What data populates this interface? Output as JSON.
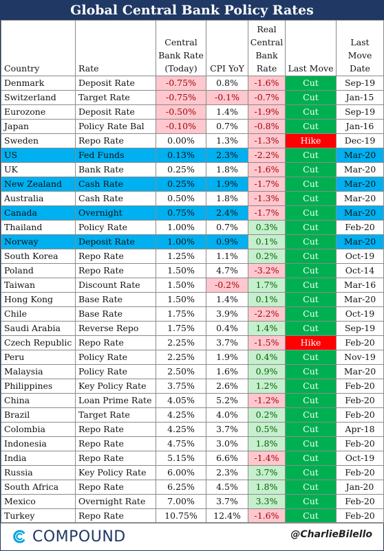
{
  "title": "Global Central Bank Policy Rates",
  "headers": {
    "country": "Country",
    "rate": "Rate",
    "cb_rate": [
      "Central",
      "Bank Rate",
      "(Today)"
    ],
    "cpi": "CPI YoY",
    "real": [
      "Real",
      "Central",
      "Bank",
      "Rate"
    ],
    "last_move": "Last Move",
    "date": [
      "Last",
      "Move",
      "Date"
    ]
  },
  "colors": {
    "title_bg": "#1f3864",
    "highlight_row": "#00b0f0",
    "negative_bg": "#ffc7ce",
    "negative_text": "#9c0006",
    "positive_bg": "#c6efce",
    "positive_text": "#006100",
    "cut": "#00b050",
    "hike": "#ff0000"
  },
  "rows": [
    {
      "country": "Denmark",
      "rate": "Deposit Rate",
      "cb": "-0.75%",
      "cpi": "0.8%",
      "real": "-1.6%",
      "move": "Cut",
      "date": "Sep-19",
      "hl": false,
      "cb_neg": true,
      "cpi_neg": false,
      "real_sign": "neg"
    },
    {
      "country": "Switzerland",
      "rate": "Target Rate",
      "cb": "-0.75%",
      "cpi": "-0.1%",
      "real": "-0.7%",
      "move": "Cut",
      "date": "Jan-15",
      "hl": false,
      "cb_neg": true,
      "cpi_neg": true,
      "real_sign": "neg"
    },
    {
      "country": "Eurozone",
      "rate": "Deposit Rate",
      "cb": "-0.50%",
      "cpi": "1.4%",
      "real": "-1.9%",
      "move": "Cut",
      "date": "Sep-19",
      "hl": false,
      "cb_neg": true,
      "cpi_neg": false,
      "real_sign": "neg"
    },
    {
      "country": "Japan",
      "rate": "Policy Rate Bal",
      "cb": "-0.10%",
      "cpi": "0.7%",
      "real": "-0.8%",
      "move": "Cut",
      "date": "Jan-16",
      "hl": false,
      "cb_neg": true,
      "cpi_neg": false,
      "real_sign": "neg"
    },
    {
      "country": "Sweden",
      "rate": "Repo Rate",
      "cb": "0.00%",
      "cpi": "1.3%",
      "real": "-1.3%",
      "move": "Hike",
      "date": "Dec-19",
      "hl": false,
      "cb_neg": false,
      "cpi_neg": false,
      "real_sign": "neg"
    },
    {
      "country": "US",
      "rate": "Fed Funds",
      "cb": "0.13%",
      "cpi": "2.3%",
      "real": "-2.2%",
      "move": "Cut",
      "date": "Mar-20",
      "hl": true,
      "cb_neg": false,
      "cpi_neg": false,
      "real_sign": "neg"
    },
    {
      "country": "UK",
      "rate": "Bank Rate",
      "cb": "0.25%",
      "cpi": "1.8%",
      "real": "-1.6%",
      "move": "Cut",
      "date": "Mar-20",
      "hl": false,
      "cb_neg": false,
      "cpi_neg": false,
      "real_sign": "neg"
    },
    {
      "country": "New Zealand",
      "rate": "Cash Rate",
      "cb": "0.25%",
      "cpi": "1.9%",
      "real": "-1.7%",
      "move": "Cut",
      "date": "Mar-20",
      "hl": true,
      "cb_neg": false,
      "cpi_neg": false,
      "real_sign": "neg"
    },
    {
      "country": "Australia",
      "rate": "Cash Rate",
      "cb": "0.50%",
      "cpi": "1.8%",
      "real": "-1.3%",
      "move": "Cut",
      "date": "Mar-20",
      "hl": false,
      "cb_neg": false,
      "cpi_neg": false,
      "real_sign": "neg"
    },
    {
      "country": "Canada",
      "rate": "Overnight",
      "cb": "0.75%",
      "cpi": "2.4%",
      "real": "-1.7%",
      "move": "Cut",
      "date": "Mar-20",
      "hl": true,
      "cb_neg": false,
      "cpi_neg": false,
      "real_sign": "neg"
    },
    {
      "country": "Thailand",
      "rate": "Policy Rate",
      "cb": "1.00%",
      "cpi": "0.7%",
      "real": "0.3%",
      "move": "Cut",
      "date": "Feb-20",
      "hl": false,
      "cb_neg": false,
      "cpi_neg": false,
      "real_sign": "pos"
    },
    {
      "country": "Norway",
      "rate": "Deposit Rate",
      "cb": "1.00%",
      "cpi": "0.9%",
      "real": "0.1%",
      "move": "Cut",
      "date": "Mar-20",
      "hl": true,
      "cb_neg": false,
      "cpi_neg": false,
      "real_sign": "pos"
    },
    {
      "country": "South Korea",
      "rate": "Repo Rate",
      "cb": "1.25%",
      "cpi": "1.1%",
      "real": "0.2%",
      "move": "Cut",
      "date": "Oct-19",
      "hl": false,
      "cb_neg": false,
      "cpi_neg": false,
      "real_sign": "pos"
    },
    {
      "country": "Poland",
      "rate": "Repo Rate",
      "cb": "1.50%",
      "cpi": "4.7%",
      "real": "-3.2%",
      "move": "Cut",
      "date": "Oct-14",
      "hl": false,
      "cb_neg": false,
      "cpi_neg": false,
      "real_sign": "neg"
    },
    {
      "country": "Taiwan",
      "rate": "Discount Rate",
      "cb": "1.50%",
      "cpi": "-0.2%",
      "real": "1.7%",
      "move": "Cut",
      "date": "Mar-16",
      "hl": false,
      "cb_neg": false,
      "cpi_neg": true,
      "real_sign": "pos"
    },
    {
      "country": "Hong Kong",
      "rate": "Base Rate",
      "cb": "1.50%",
      "cpi": "1.4%",
      "real": "0.1%",
      "move": "Cut",
      "date": "Mar-20",
      "hl": false,
      "cb_neg": false,
      "cpi_neg": false,
      "real_sign": "pos"
    },
    {
      "country": "Chile",
      "rate": "Base Rate",
      "cb": "1.75%",
      "cpi": "3.9%",
      "real": "-2.2%",
      "move": "Cut",
      "date": "Oct-19",
      "hl": false,
      "cb_neg": false,
      "cpi_neg": false,
      "real_sign": "neg"
    },
    {
      "country": "Saudi Arabia",
      "rate": "Reverse Repo",
      "cb": "1.75%",
      "cpi": "0.4%",
      "real": "1.4%",
      "move": "Cut",
      "date": "Sep-19",
      "hl": false,
      "cb_neg": false,
      "cpi_neg": false,
      "real_sign": "pos"
    },
    {
      "country": "Czech Republic",
      "rate": "Repo Rate",
      "cb": "2.25%",
      "cpi": "3.7%",
      "real": "-1.5%",
      "move": "Hike",
      "date": "Feb-20",
      "hl": false,
      "cb_neg": false,
      "cpi_neg": false,
      "real_sign": "neg"
    },
    {
      "country": "Peru",
      "rate": "Policy Rate",
      "cb": "2.25%",
      "cpi": "1.9%",
      "real": "0.4%",
      "move": "Cut",
      "date": "Nov-19",
      "hl": false,
      "cb_neg": false,
      "cpi_neg": false,
      "real_sign": "pos"
    },
    {
      "country": "Malaysia",
      "rate": "Policy Rate",
      "cb": "2.50%",
      "cpi": "1.6%",
      "real": "0.9%",
      "move": "Cut",
      "date": "Mar-20",
      "hl": false,
      "cb_neg": false,
      "cpi_neg": false,
      "real_sign": "pos"
    },
    {
      "country": "Philippines",
      "rate": "Key Policy Rate",
      "cb": "3.75%",
      "cpi": "2.6%",
      "real": "1.2%",
      "move": "Cut",
      "date": "Feb-20",
      "hl": false,
      "cb_neg": false,
      "cpi_neg": false,
      "real_sign": "pos"
    },
    {
      "country": "China",
      "rate": "Loan Prime Rate",
      "cb": "4.05%",
      "cpi": "5.2%",
      "real": "-1.2%",
      "move": "Cut",
      "date": "Feb-20",
      "hl": false,
      "cb_neg": false,
      "cpi_neg": false,
      "real_sign": "neg"
    },
    {
      "country": "Brazil",
      "rate": "Target Rate",
      "cb": "4.25%",
      "cpi": "4.0%",
      "real": "0.2%",
      "move": "Cut",
      "date": "Feb-20",
      "hl": false,
      "cb_neg": false,
      "cpi_neg": false,
      "real_sign": "pos"
    },
    {
      "country": "Colombia",
      "rate": "Repo Rate",
      "cb": "4.25%",
      "cpi": "3.7%",
      "real": "0.5%",
      "move": "Cut",
      "date": "Apr-18",
      "hl": false,
      "cb_neg": false,
      "cpi_neg": false,
      "real_sign": "pos"
    },
    {
      "country": "Indonesia",
      "rate": "Repo Rate",
      "cb": "4.75%",
      "cpi": "3.0%",
      "real": "1.8%",
      "move": "Cut",
      "date": "Feb-20",
      "hl": false,
      "cb_neg": false,
      "cpi_neg": false,
      "real_sign": "pos"
    },
    {
      "country": "India",
      "rate": "Repo Rate",
      "cb": "5.15%",
      "cpi": "6.6%",
      "real": "-1.4%",
      "move": "Cut",
      "date": "Oct-19",
      "hl": false,
      "cb_neg": false,
      "cpi_neg": false,
      "real_sign": "neg"
    },
    {
      "country": "Russia",
      "rate": "Key Policy Rate",
      "cb": "6.00%",
      "cpi": "2.3%",
      "real": "3.7%",
      "move": "Cut",
      "date": "Feb-20",
      "hl": false,
      "cb_neg": false,
      "cpi_neg": false,
      "real_sign": "pos"
    },
    {
      "country": "South Africa",
      "rate": "Repo Rate",
      "cb": "6.25%",
      "cpi": "4.5%",
      "real": "1.8%",
      "move": "Cut",
      "date": "Jan-20",
      "hl": false,
      "cb_neg": false,
      "cpi_neg": false,
      "real_sign": "pos"
    },
    {
      "country": "Mexico",
      "rate": "Overnight Rate",
      "cb": "7.00%",
      "cpi": "3.7%",
      "real": "3.3%",
      "move": "Cut",
      "date": "Feb-20",
      "hl": false,
      "cb_neg": false,
      "cpi_neg": false,
      "real_sign": "pos"
    },
    {
      "country": "Turkey",
      "rate": "Repo Rate",
      "cb": "10.75%",
      "cpi": "12.4%",
      "real": "-1.6%",
      "move": "Cut",
      "date": "Feb-20",
      "hl": false,
      "cb_neg": false,
      "cpi_neg": false,
      "real_sign": "neg"
    }
  ],
  "footer": {
    "logo_text": "COMPOUND",
    "logo_icon": "compound-c-logo-icon",
    "handle": "@CharlieBilello"
  }
}
